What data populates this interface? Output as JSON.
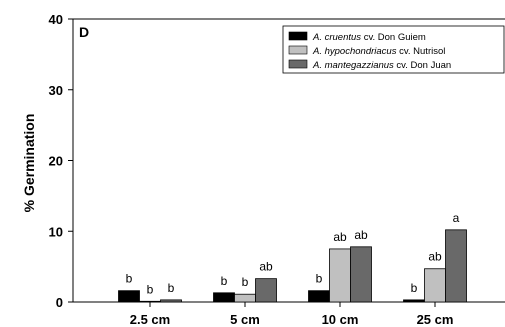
{
  "chart_data": {
    "type": "bar",
    "panel_label": "D",
    "ylabel": "% Germination",
    "ylim": [
      0,
      40
    ],
    "yticks": [
      0,
      10,
      20,
      30,
      40
    ],
    "grid": false,
    "legend_position": "top-right",
    "categories": [
      "2.5 cm",
      "5 cm",
      "10 cm",
      "25 cm"
    ],
    "series": [
      {
        "name_italic": "A. cruentus",
        "name_rest": " cv. Don Guiem",
        "color": "#000000",
        "values": [
          1.6,
          1.3,
          1.6,
          0.3
        ],
        "labels": [
          "b",
          "b",
          "b",
          "b"
        ]
      },
      {
        "name_italic": "A. hypochondriacus",
        "name_rest": " cv. Nutrisol",
        "color": "#c0c0c0",
        "values": [
          0.1,
          1.1,
          7.5,
          4.7
        ],
        "labels": [
          "b",
          "b",
          "ab",
          "ab"
        ]
      },
      {
        "name_italic": "A. mantegazzianus",
        "name_rest": " cv. Don Juan",
        "color": "#696969",
        "values": [
          0.3,
          3.3,
          7.8,
          10.2
        ],
        "labels": [
          "b",
          "ab",
          "ab",
          "a"
        ]
      }
    ]
  }
}
